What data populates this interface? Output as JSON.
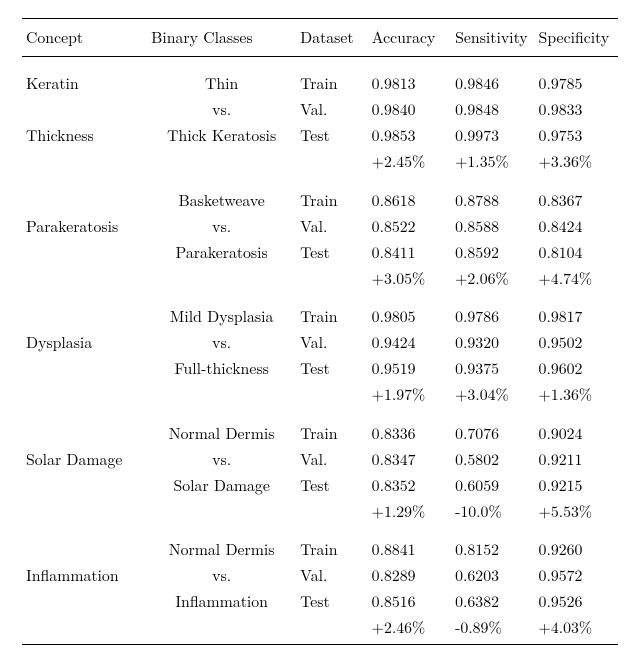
{
  "header": {
    "concept": "Concept",
    "classes": "Binary Classes",
    "dataset": "Dataset",
    "accuracy": "Accuracy",
    "sensitivity": "Sensitivity",
    "specificity": "Specificity"
  },
  "groups": [
    {
      "concept_lines": [
        "Keratin",
        "",
        "Thickness",
        ""
      ],
      "class_lines": [
        "Thin",
        "vs.",
        "Thick Keratosis",
        ""
      ],
      "rows": [
        {
          "dataset": "Train",
          "acc": "0.9813",
          "sens": "0.9846",
          "spec": "0.9785"
        },
        {
          "dataset": "Val.",
          "acc": "0.9840",
          "sens": "0.9848",
          "spec": "0.9833"
        },
        {
          "dataset": "Test",
          "acc": "0.9853",
          "sens": "0.9973",
          "spec": "0.9753"
        },
        {
          "dataset": "",
          "acc": "+2.45%",
          "sens": "+1.35%",
          "spec": "+3.36%"
        }
      ]
    },
    {
      "concept_lines": [
        "",
        "Parakeratosis",
        "",
        ""
      ],
      "class_lines": [
        "Basketweave",
        "vs.",
        "Parakeratosis",
        ""
      ],
      "rows": [
        {
          "dataset": "Train",
          "acc": "0.8618",
          "sens": "0.8788",
          "spec": "0.8367"
        },
        {
          "dataset": "Val.",
          "acc": "0.8522",
          "sens": "0.8588",
          "spec": "0.8424"
        },
        {
          "dataset": "Test",
          "acc": "0.8411",
          "sens": "0.8592",
          "spec": "0.8104"
        },
        {
          "dataset": "",
          "acc": "+3.05%",
          "sens": "+2.06%",
          "spec": "+4.74%"
        }
      ]
    },
    {
      "concept_lines": [
        "",
        "Dysplasia",
        "",
        ""
      ],
      "class_lines": [
        "Mild Dysplasia",
        "vs.",
        "Full-thickness",
        ""
      ],
      "rows": [
        {
          "dataset": "Train",
          "acc": "0.9805",
          "sens": "0.9786",
          "spec": "0.9817"
        },
        {
          "dataset": "Val.",
          "acc": "0.9424",
          "sens": "0.9320",
          "spec": "0.9502"
        },
        {
          "dataset": "Test",
          "acc": "0.9519",
          "sens": "0.9375",
          "spec": "0.9602"
        },
        {
          "dataset": "",
          "acc": "+1.97%",
          "sens": "+3.04%",
          "spec": "+1.36%"
        }
      ]
    },
    {
      "concept_lines": [
        "",
        "Solar Damage",
        "",
        ""
      ],
      "class_lines": [
        "Normal Dermis",
        "vs.",
        "Solar Damage",
        ""
      ],
      "rows": [
        {
          "dataset": "Train",
          "acc": "0.8336",
          "sens": "0.7076",
          "spec": "0.9024"
        },
        {
          "dataset": "Val.",
          "acc": "0.8347",
          "sens": "0.5802",
          "spec": "0.9211"
        },
        {
          "dataset": "Test",
          "acc": "0.8352",
          "sens": "0.6059",
          "spec": "0.9215"
        },
        {
          "dataset": "",
          "acc": "+1.29%",
          "sens": "-10.0%",
          "spec": "+5.53%"
        }
      ]
    },
    {
      "concept_lines": [
        "",
        "Inflammation",
        "",
        ""
      ],
      "class_lines": [
        "Normal Dermis",
        "vs.",
        "Inflammation",
        ""
      ],
      "rows": [
        {
          "dataset": "Train",
          "acc": "0.8841",
          "sens": "0.8152",
          "spec": "0.9260"
        },
        {
          "dataset": "Val.",
          "acc": "0.8289",
          "sens": "0.6203",
          "spec": "0.9572"
        },
        {
          "dataset": "Test",
          "acc": "0.8516",
          "sens": "0.6382",
          "spec": "0.9526"
        },
        {
          "dataset": "",
          "acc": "+2.46%",
          "sens": "-0.89%",
          "spec": "+4.03%"
        }
      ]
    }
  ]
}
